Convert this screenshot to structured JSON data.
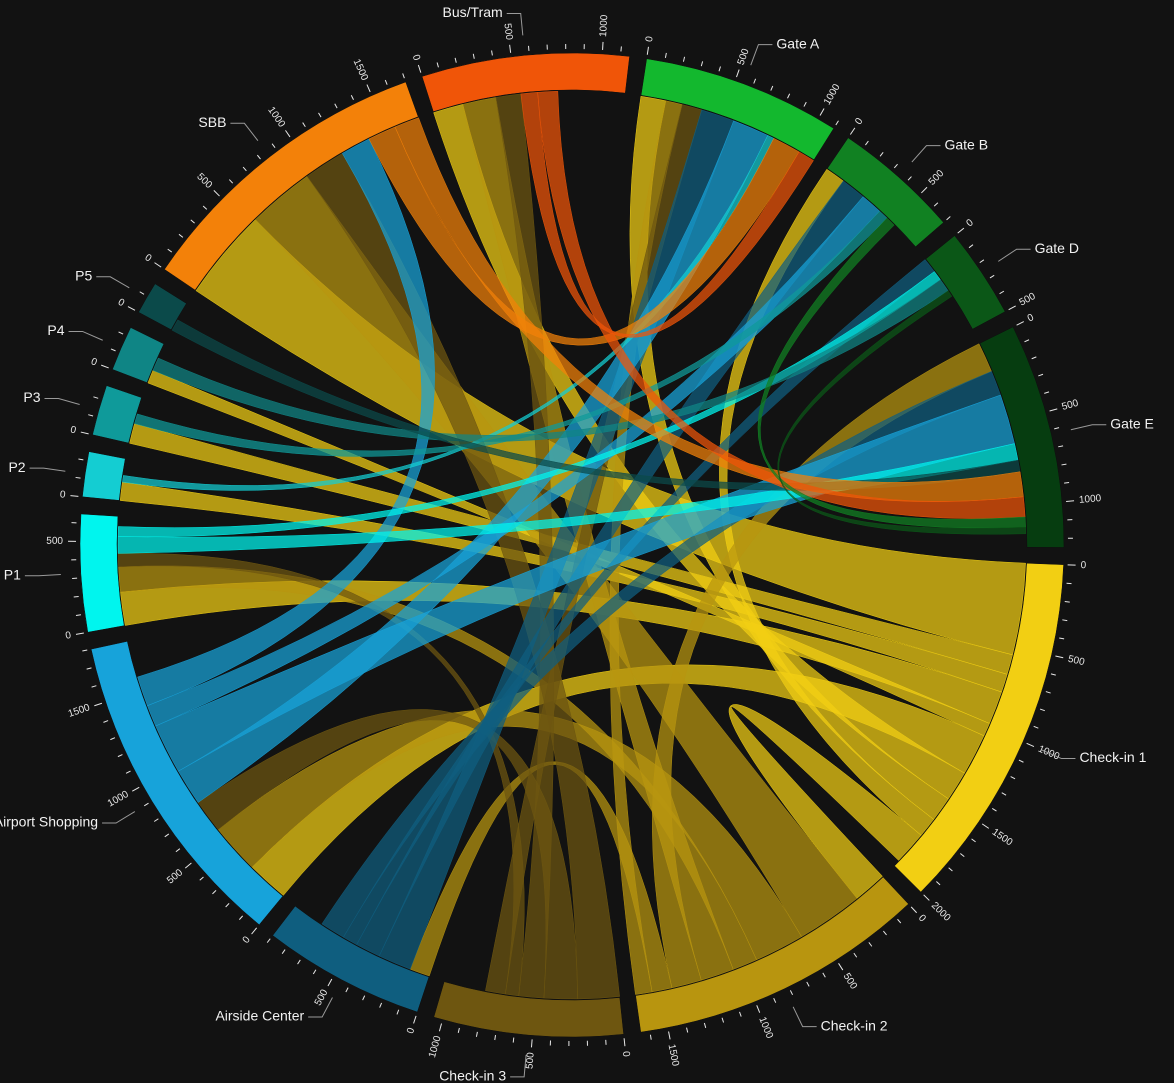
{
  "chart_data": {
    "type": "chord",
    "groups": [
      {
        "name": "Check-in 1",
        "total": 2000,
        "color": "#f2cf13",
        "ticks": [
          0,
          500,
          1000,
          1500,
          2000
        ]
      },
      {
        "name": "Check-in 2",
        "total": 1650,
        "color": "#b8950f",
        "ticks": [
          0,
          500,
          1000,
          1500
        ]
      },
      {
        "name": "Check-in 3",
        "total": 1050,
        "color": "#6e5610",
        "ticks": [
          0,
          500,
          1000
        ]
      },
      {
        "name": "Airside Center",
        "total": 900,
        "color": "#0f5e7f",
        "ticks": [
          0,
          500
        ]
      },
      {
        "name": "Airport Shopping",
        "total": 1800,
        "color": "#17a3da",
        "ticks": [
          0,
          500,
          1000,
          1500
        ]
      },
      {
        "name": "P1",
        "total": 650,
        "color": "#00f5ee",
        "ticks": [
          0,
          500
        ]
      },
      {
        "name": "P2",
        "total": 250,
        "color": "#14cdd2",
        "ticks": [
          0
        ]
      },
      {
        "name": "P3",
        "total": 280,
        "color": "#0f9a9a",
        "ticks": [
          0
        ]
      },
      {
        "name": "P4",
        "total": 250,
        "color": "#0f8585",
        "ticks": [
          0
        ]
      },
      {
        "name": "P5",
        "total": 180,
        "color": "#0b4a4a",
        "ticks": [
          0
        ]
      },
      {
        "name": "SBB",
        "total": 1700,
        "color": "#f38109",
        "ticks": [
          0,
          500,
          1000,
          1500
        ]
      },
      {
        "name": "Bus/Tram",
        "total": 1150,
        "color": "#f05508",
        "ticks": [
          0,
          500,
          1000
        ]
      },
      {
        "name": "Gate A",
        "total": 1100,
        "color": "#13b82e",
        "ticks": [
          0,
          500,
          1000
        ]
      },
      {
        "name": "Gate B",
        "total": 700,
        "color": "#118122",
        "ticks": [
          0,
          500
        ]
      },
      {
        "name": "Gate D",
        "total": 500,
        "color": "#0b5717",
        "ticks": [
          0,
          500
        ]
      },
      {
        "name": "Gate E",
        "total": 1250,
        "color": "#063d10",
        "ticks": [
          0,
          500,
          1000
        ]
      }
    ],
    "flows": [
      [
        "Check-in 1",
        "SBB",
        550
      ],
      [
        "Check-in 1",
        "P3",
        120
      ],
      [
        "Check-in 1",
        "P2",
        110
      ],
      [
        "Check-in 1",
        "P1",
        200
      ],
      [
        "Check-in 1",
        "P4",
        80
      ],
      [
        "Check-in 1",
        "Airport Shopping",
        250
      ],
      [
        "Check-in 1",
        "Bus/Tram",
        180
      ],
      [
        "Check-in 1",
        "Gate A",
        150
      ],
      [
        "Check-in 1",
        "Gate B",
        120
      ],
      [
        "Check-in 1",
        "Check-in 2",
        200
      ],
      [
        "Check-in 2",
        "SBB",
        400
      ],
      [
        "Check-in 2",
        "Airport Shopping",
        300
      ],
      [
        "Check-in 2",
        "P1",
        150
      ],
      [
        "Check-in 2",
        "Bus/Tram",
        200
      ],
      [
        "Check-in 2",
        "Gate E",
        180
      ],
      [
        "Check-in 2",
        "Airside Center",
        120
      ],
      [
        "Check-in 2",
        "Gate A",
        100
      ],
      [
        "Check-in 3",
        "SBB",
        250
      ],
      [
        "Check-in 3",
        "Airport Shopping",
        200
      ],
      [
        "Check-in 3",
        "Bus/Tram",
        150
      ],
      [
        "Check-in 3",
        "P1",
        80
      ],
      [
        "Check-in 3",
        "Gate A",
        120
      ],
      [
        "Airside Center",
        "Gate A",
        200
      ],
      [
        "Airside Center",
        "Gate B",
        150
      ],
      [
        "Airside Center",
        "Gate D",
        90
      ],
      [
        "Airside Center",
        "Gate E",
        150
      ],
      [
        "Airport Shopping",
        "Gate A",
        220
      ],
      [
        "Airport Shopping",
        "Gate E",
        300
      ],
      [
        "Airport Shopping",
        "Gate B",
        130
      ],
      [
        "Airport Shopping",
        "SBB",
        180
      ],
      [
        "P1",
        "Gate E",
        100
      ],
      [
        "P1",
        "Gate D",
        60
      ],
      [
        "P2",
        "Gate A",
        40
      ],
      [
        "P3",
        "Gate B",
        60
      ],
      [
        "P4",
        "Gate D",
        80
      ],
      [
        "P5",
        "Gate E",
        70
      ],
      [
        "SBB",
        "Gate A",
        170
      ],
      [
        "SBB",
        "Gate E",
        150
      ],
      [
        "Bus/Tram",
        "Gate A",
        100
      ],
      [
        "Bus/Tram",
        "Gate E",
        120
      ],
      [
        "Gate B",
        "Gate E",
        60
      ],
      [
        "Gate D",
        "Gate E",
        40
      ]
    ]
  }
}
